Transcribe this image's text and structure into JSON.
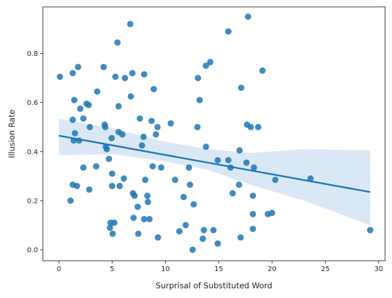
{
  "chart_data": {
    "type": "scatter",
    "title": "",
    "xlabel": "Surprisal of Substituted Word",
    "ylabel": "Illusion Rate",
    "xlim": [
      -1.5,
      30.6
    ],
    "ylim": [
      -0.045,
      0.99
    ],
    "xticks": [
      0,
      5,
      10,
      15,
      20,
      25,
      30
    ],
    "xtick_labels": [
      "0",
      "5",
      "10",
      "15",
      "20",
      "25",
      "30"
    ],
    "yticks": [
      0.0,
      0.2,
      0.4,
      0.6,
      0.8
    ],
    "ytick_labels": [
      "0.0",
      "0.2",
      "0.4",
      "0.6",
      "0.8"
    ],
    "grid": false,
    "colors": {
      "points": "#1f77b4",
      "line": "#1f77b4",
      "band": "#c6dbef"
    },
    "points": [
      [
        0.1,
        0.705
      ],
      [
        1.1,
        0.2
      ],
      [
        1.3,
        0.53
      ],
      [
        1.3,
        0.72
      ],
      [
        1.3,
        0.265
      ],
      [
        1.4,
        0.445
      ],
      [
        1.45,
        0.61
      ],
      [
        1.5,
        0.475
      ],
      [
        1.7,
        0.26
      ],
      [
        1.8,
        0.745
      ],
      [
        1.9,
        0.445
      ],
      [
        2.0,
        0.575
      ],
      [
        2.3,
        0.535
      ],
      [
        2.3,
        0.335
      ],
      [
        2.6,
        0.595
      ],
      [
        2.8,
        0.59
      ],
      [
        2.9,
        0.5
      ],
      [
        2.85,
        0.245
      ],
      [
        3.6,
        0.645
      ],
      [
        3.5,
        0.34
      ],
      [
        4.2,
        0.745
      ],
      [
        4.3,
        0.51
      ],
      [
        4.35,
        0.5
      ],
      [
        4.4,
        0.42
      ],
      [
        4.5,
        0.41
      ],
      [
        4.7,
        0.37
      ],
      [
        4.8,
        0.09
      ],
      [
        4.85,
        0.11
      ],
      [
        4.95,
        0.455
      ],
      [
        5.0,
        0.31
      ],
      [
        5.0,
        0.26
      ],
      [
        5.05,
        0.065
      ],
      [
        5.2,
        0.11
      ],
      [
        5.3,
        0.705
      ],
      [
        5.5,
        0.845
      ],
      [
        5.6,
        0.585
      ],
      [
        5.6,
        0.48
      ],
      [
        5.7,
        0.26
      ],
      [
        5.95,
        0.47
      ],
      [
        6.1,
        0.29
      ],
      [
        6.2,
        0.7
      ],
      [
        6.7,
        0.92
      ],
      [
        6.75,
        0.625
      ],
      [
        6.9,
        0.72
      ],
      [
        6.95,
        0.23
      ],
      [
        7.0,
        0.13
      ],
      [
        7.1,
        0.22
      ],
      [
        7.4,
        0.175
      ],
      [
        7.45,
        0.065
      ],
      [
        7.6,
        0.535
      ],
      [
        7.8,
        0.425
      ],
      [
        7.95,
        0.46
      ],
      [
        8.0,
        0.715
      ],
      [
        8.0,
        0.125
      ],
      [
        8.1,
        0.285
      ],
      [
        8.3,
        0.22
      ],
      [
        8.35,
        0.195
      ],
      [
        8.5,
        0.125
      ],
      [
        8.7,
        0.525
      ],
      [
        8.8,
        0.34
      ],
      [
        8.9,
        0.655
      ],
      [
        9.1,
        0.47
      ],
      [
        9.25,
        0.5
      ],
      [
        9.3,
        0.05
      ],
      [
        9.6,
        0.335
      ],
      [
        10.5,
        0.515
      ],
      [
        10.9,
        0.285
      ],
      [
        11.3,
        0.075
      ],
      [
        11.7,
        0.215
      ],
      [
        11.9,
        0.1
      ],
      [
        12.2,
        0.335
      ],
      [
        12.3,
        0.265
      ],
      [
        12.55,
        0.0
      ],
      [
        12.65,
        0.185
      ],
      [
        13.0,
        0.5
      ],
      [
        13.05,
        0.7
      ],
      [
        13.2,
        0.61
      ],
      [
        13.5,
        0.045
      ],
      [
        13.6,
        0.08
      ],
      [
        13.8,
        0.75
      ],
      [
        13.8,
        0.42
      ],
      [
        14.2,
        0.765
      ],
      [
        14.5,
        0.08
      ],
      [
        14.9,
        0.365
      ],
      [
        14.9,
        0.025
      ],
      [
        15.9,
        0.89
      ],
      [
        15.9,
        0.365
      ],
      [
        16.1,
        0.335
      ],
      [
        16.3,
        0.23
      ],
      [
        16.9,
        0.265
      ],
      [
        16.95,
        0.405
      ],
      [
        17.05,
        0.05
      ],
      [
        17.1,
        0.66
      ],
      [
        17.6,
        0.355
      ],
      [
        17.65,
        0.51
      ],
      [
        17.75,
        0.95
      ],
      [
        18.0,
        0.5
      ],
      [
        18.3,
        0.335
      ],
      [
        18.2,
        0.22
      ],
      [
        18.2,
        0.145
      ],
      [
        18.2,
        0.085
      ],
      [
        18.7,
        0.5
      ],
      [
        19.1,
        0.73
      ],
      [
        19.6,
        0.145
      ],
      [
        20.0,
        0.15
      ],
      [
        20.3,
        0.285
      ],
      [
        23.6,
        0.29
      ],
      [
        29.2,
        0.08
      ]
    ],
    "regression": {
      "x_range": [
        0.0,
        29.2
      ],
      "y_start": 0.465,
      "y_end": 0.235,
      "ci_band": [
        [
          0.0,
          0.385,
          0.535
        ],
        [
          5.0,
          0.39,
          0.495
        ],
        [
          10.0,
          0.36,
          0.44
        ],
        [
          14.0,
          0.325,
          0.41
        ],
        [
          18.0,
          0.265,
          0.395
        ],
        [
          23.0,
          0.2,
          0.41
        ],
        [
          29.2,
          0.1,
          0.405
        ]
      ]
    }
  }
}
